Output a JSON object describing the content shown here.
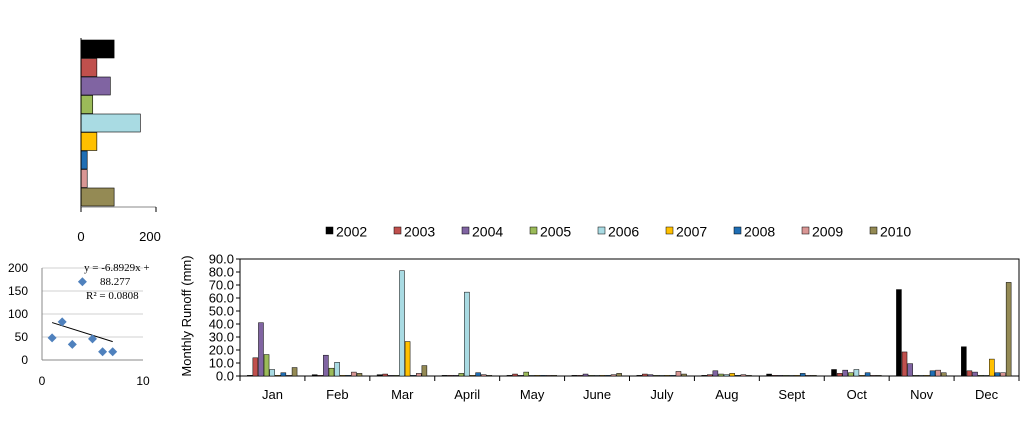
{
  "chart_data": [
    {
      "type": "bar",
      "orientation": "horizontal",
      "categories": [
        "2002",
        "2003",
        "2004",
        "2005",
        "2006",
        "2007",
        "2008",
        "2009",
        "2010"
      ],
      "values": [
        96,
        46,
        85,
        34,
        172,
        46,
        18,
        18,
        96
      ],
      "xlim": [
        0,
        200
      ],
      "xticks": [
        "0",
        "200"
      ],
      "colors": [
        "#000000",
        "#c0504d",
        "#8064a2",
        "#9bbb59",
        "#a9dbe3",
        "#ffc000",
        "#1f6eb4",
        "#d99694",
        "#948a54"
      ]
    },
    {
      "type": "scatter",
      "points": [
        {
          "x": 1,
          "y": 48
        },
        {
          "x": 2,
          "y": 83
        },
        {
          "x": 3,
          "y": 34
        },
        {
          "x": 4,
          "y": 170
        },
        {
          "x": 5,
          "y": 46
        },
        {
          "x": 6,
          "y": 18
        },
        {
          "x": 7,
          "y": 18
        }
      ],
      "trendline": {
        "slope": -6.8929,
        "intercept": 88.277
      },
      "equation_line1": "y = -6.8929x +",
      "equation_line2": "88.277",
      "r2_label": "R² = 0.0808",
      "xlim": [
        0,
        10
      ],
      "ylim": [
        0,
        200
      ],
      "xticks": [
        "0",
        "10"
      ],
      "yticks": [
        "0",
        "50",
        "100",
        "150",
        "200"
      ],
      "marker_color": "#4f81bd"
    },
    {
      "type": "bar",
      "ylabel": "Monthly  Runoff (mm)",
      "ylim": [
        0,
        90
      ],
      "yticks": [
        "0.0",
        "10.0",
        "20.0",
        "30.0",
        "40.0",
        "50.0",
        "60.0",
        "70.0",
        "80.0",
        "90.0"
      ],
      "legend_position": "top",
      "categories": [
        "Jan",
        "Feb",
        "Mar",
        "April",
        "May",
        "June",
        "July",
        "Aug",
        "Sept",
        "Oct",
        "Nov",
        "Dec"
      ],
      "series": [
        {
          "name": "2002",
          "color": "#000000",
          "values": [
            0.5,
            1.0,
            1.0,
            0.5,
            0.5,
            0.5,
            0.5,
            0.5,
            1.5,
            5.0,
            66.5,
            22.5
          ]
        },
        {
          "name": "2003",
          "color": "#c0504d",
          "values": [
            14.0,
            0.5,
            1.5,
            0.5,
            1.5,
            0.5,
            1.5,
            1.0,
            0.5,
            2.0,
            18.5,
            4.0
          ]
        },
        {
          "name": "2004",
          "color": "#8064a2",
          "values": [
            41.0,
            16.0,
            0.5,
            0.5,
            0.5,
            1.5,
            1.0,
            4.0,
            0.5,
            4.5,
            9.5,
            3.0
          ]
        },
        {
          "name": "2005",
          "color": "#9bbb59",
          "values": [
            16.5,
            6.0,
            0.5,
            2.0,
            3.0,
            0.5,
            0.5,
            1.5,
            0.5,
            2.5,
            0.5,
            0.5
          ]
        },
        {
          "name": "2006",
          "color": "#a9dbe3",
          "values": [
            5.0,
            10.5,
            81.0,
            64.5,
            0.5,
            0.5,
            0.5,
            1.0,
            0.5,
            5.0,
            0.5,
            0.5
          ]
        },
        {
          "name": "2007",
          "color": "#ffc000",
          "values": [
            0.5,
            0.5,
            26.5,
            0.5,
            0.5,
            0.5,
            0.5,
            2.0,
            0.5,
            0.5,
            0.5,
            13.0
          ]
        },
        {
          "name": "2008",
          "color": "#1f6eb4",
          "values": [
            2.5,
            0.5,
            0.5,
            2.5,
            0.5,
            0.5,
            0.5,
            0.5,
            2.0,
            2.5,
            4.0,
            2.5
          ]
        },
        {
          "name": "2009",
          "color": "#d99694",
          "values": [
            0.5,
            3.0,
            2.0,
            1.0,
            0.5,
            1.0,
            3.5,
            1.0,
            0.5,
            0.5,
            4.5,
            2.5
          ]
        },
        {
          "name": "2010",
          "color": "#948a54",
          "values": [
            6.5,
            2.0,
            8.0,
            0.5,
            0.5,
            2.0,
            1.5,
            0.5,
            0.5,
            0.5,
            2.5,
            72.0
          ]
        }
      ]
    }
  ]
}
